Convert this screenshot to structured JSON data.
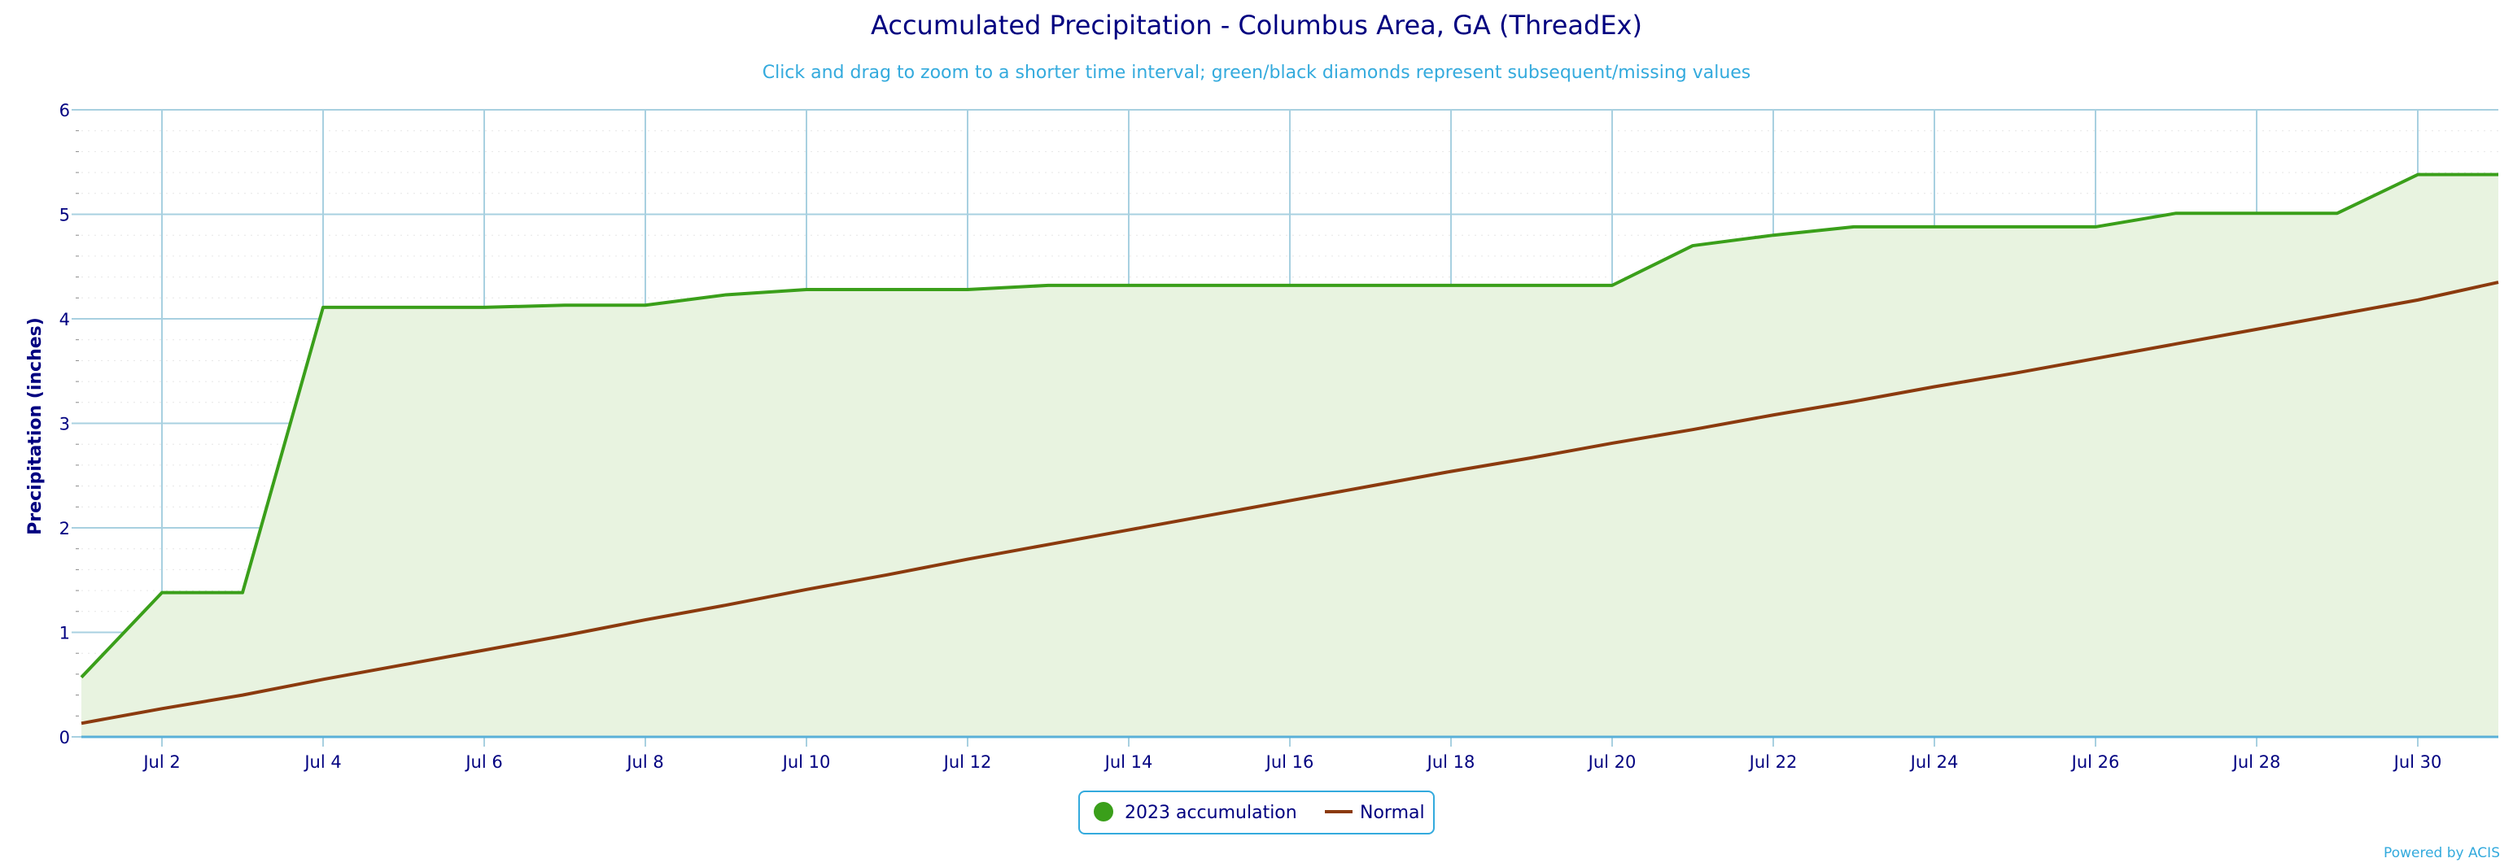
{
  "chart_data": {
    "type": "area",
    "title": "Accumulated Precipitation - Columbus Area, GA (ThreadEx)",
    "subtitle": "Click and drag to zoom to a shorter time interval; green/black diamonds represent subsequent/missing values",
    "ylabel": "Precipitation (inches)",
    "xlabel": "",
    "ylim": [
      0,
      6
    ],
    "yticks": [
      0,
      1,
      2,
      3,
      4,
      5,
      6
    ],
    "xlim": [
      1,
      31
    ],
    "xticks": [
      2,
      4,
      6,
      8,
      10,
      12,
      14,
      16,
      18,
      20,
      22,
      24,
      26,
      28,
      30
    ],
    "xtick_labels": [
      "Jul 2",
      "Jul 4",
      "Jul 6",
      "Jul 8",
      "Jul 10",
      "Jul 12",
      "Jul 14",
      "Jul 16",
      "Jul 18",
      "Jul 20",
      "Jul 22",
      "Jul 24",
      "Jul 26",
      "Jul 28",
      "Jul 30"
    ],
    "grid": true,
    "legend_position": "bottom-center",
    "x": [
      1,
      2,
      3,
      4,
      5,
      6,
      7,
      8,
      9,
      10,
      11,
      12,
      13,
      14,
      15,
      16,
      17,
      18,
      19,
      20,
      21,
      22,
      23,
      24,
      25,
      26,
      27,
      28,
      29,
      30,
      31
    ],
    "series": [
      {
        "name": "2023 accumulation",
        "color": "#3a9f1a",
        "fill": "#e8f3e0",
        "values": [
          0.57,
          1.38,
          1.38,
          4.11,
          4.11,
          4.11,
          4.13,
          4.13,
          4.23,
          4.28,
          4.28,
          4.28,
          4.32,
          4.32,
          4.32,
          4.32,
          4.32,
          4.32,
          4.32,
          4.32,
          4.7,
          4.8,
          4.88,
          4.88,
          4.88,
          4.88,
          5.01,
          5.01,
          5.01,
          5.38,
          5.38
        ]
      },
      {
        "name": "Normal",
        "color": "#8b3a0e",
        "values": [
          0.13,
          0.27,
          0.4,
          0.55,
          0.69,
          0.83,
          0.97,
          1.12,
          1.26,
          1.41,
          1.55,
          1.7,
          1.84,
          1.98,
          2.12,
          2.26,
          2.4,
          2.54,
          2.67,
          2.81,
          2.94,
          3.08,
          3.21,
          3.35,
          3.48,
          3.62,
          3.76,
          3.9,
          4.04,
          4.18,
          4.35
        ]
      }
    ]
  },
  "credit": "Powered by ACIS",
  "colors": {
    "grid": "#a8d0e0",
    "axis": "#5ab0d8",
    "text": "#000080",
    "accent": "#33aadd"
  }
}
